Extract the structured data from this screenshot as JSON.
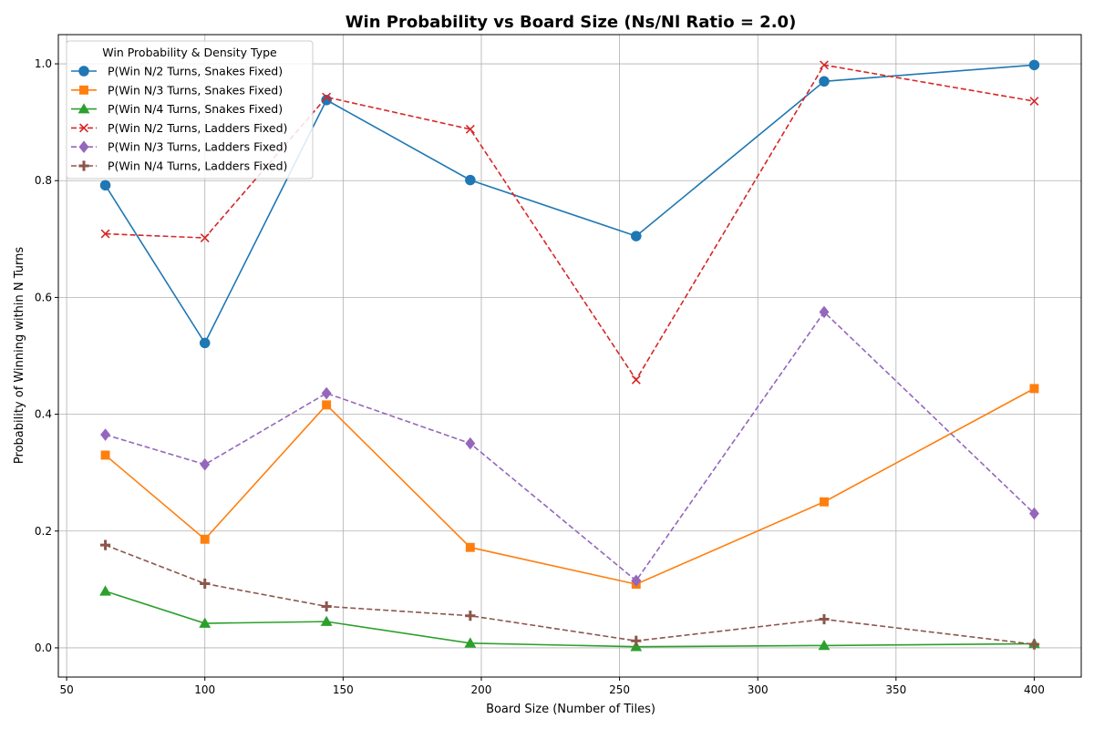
{
  "chart_data": {
    "type": "line",
    "title": "Win Probability vs Board Size (Ns/Nl Ratio = 2.0)",
    "xlabel": "Board Size (Number of Tiles)",
    "ylabel": "Probability of Winning within N Turns",
    "xlim": [
      47,
      417
    ],
    "ylim": [
      -0.05,
      1.05
    ],
    "xticks": [
      50,
      100,
      150,
      200,
      250,
      300,
      350,
      400
    ],
    "yticks": [
      0.0,
      0.2,
      0.4,
      0.6,
      0.8,
      1.0
    ],
    "xtick_labels": [
      "50",
      "100",
      "150",
      "200",
      "250",
      "300",
      "350",
      "400"
    ],
    "ytick_labels": [
      "0.0",
      "0.2",
      "0.4",
      "0.6",
      "0.8",
      "1.0"
    ],
    "grid": true,
    "legend_title": "Win Probability & Density Type",
    "legend_position": "upper-left",
    "x": [
      64,
      100,
      144,
      196,
      256,
      324,
      400
    ],
    "series": [
      {
        "name": "P(Win N/2 Turns, Snakes Fixed)",
        "color": "#1f77b4",
        "dash": "solid",
        "marker": "circle",
        "values": [
          0.792,
          0.522,
          0.938,
          0.801,
          0.705,
          0.97,
          0.998
        ]
      },
      {
        "name": "P(Win N/3 Turns, Snakes Fixed)",
        "color": "#ff7f0e",
        "dash": "solid",
        "marker": "square",
        "values": [
          0.33,
          0.186,
          0.416,
          0.172,
          0.109,
          0.25,
          0.444
        ]
      },
      {
        "name": "P(Win N/4 Turns, Snakes Fixed)",
        "color": "#2ca02c",
        "dash": "solid",
        "marker": "triangle",
        "values": [
          0.097,
          0.042,
          0.045,
          0.008,
          0.002,
          0.004,
          0.007
        ]
      },
      {
        "name": "P(Win N/2 Turns, Ladders Fixed)",
        "color": "#d62728",
        "dash": "dashed",
        "marker": "x",
        "values": [
          0.709,
          0.702,
          0.943,
          0.888,
          0.459,
          0.998,
          0.936
        ]
      },
      {
        "name": "P(Win N/3 Turns, Ladders Fixed)",
        "color": "#9467bd",
        "dash": "dashed",
        "marker": "diamond",
        "values": [
          0.365,
          0.314,
          0.436,
          0.35,
          0.115,
          0.575,
          0.23
        ]
      },
      {
        "name": "P(Win N/4 Turns, Ladders Fixed)",
        "color": "#8c564b",
        "dash": "dashed",
        "marker": "plus",
        "values": [
          0.176,
          0.11,
          0.071,
          0.055,
          0.012,
          0.049,
          0.006
        ]
      }
    ]
  }
}
